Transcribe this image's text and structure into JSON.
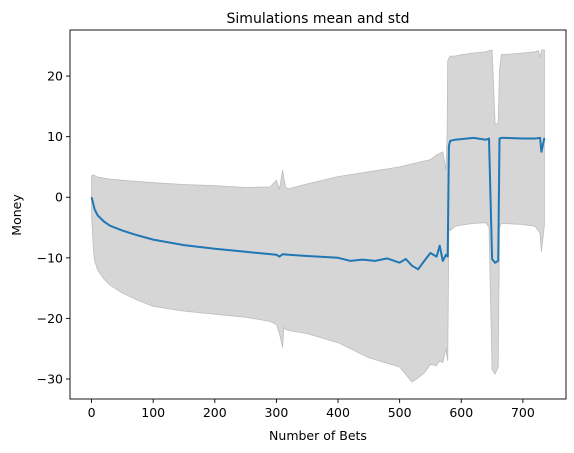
{
  "chart_data": {
    "type": "area",
    "title": "Simulations mean and std",
    "xlabel": "Number of Bets",
    "ylabel": "Money",
    "xlim": [
      -35,
      770
    ],
    "ylim": [
      -33.3,
      27.6
    ],
    "xticks": [
      0,
      100,
      200,
      300,
      400,
      500,
      600,
      700
    ],
    "yticks": [
      -30,
      -20,
      -10,
      0,
      10,
      20
    ],
    "grid": false,
    "colors": {
      "mean": "#1f77b4",
      "band": "#d6d6d6",
      "band_edge": "#bdbdbd"
    },
    "series": [
      {
        "name": "mean",
        "kind": "line",
        "x": [
          0,
          5,
          10,
          20,
          30,
          50,
          75,
          100,
          150,
          200,
          250,
          300,
          305,
          310,
          320,
          350,
          400,
          420,
          440,
          460,
          480,
          500,
          510,
          520,
          530,
          540,
          550,
          560,
          565,
          570,
          575,
          578,
          580,
          582,
          590,
          600,
          620,
          640,
          645,
          650,
          655,
          660,
          662,
          665,
          670,
          700,
          720,
          728,
          730,
          735
        ],
        "y": [
          0,
          -2,
          -3,
          -4,
          -4.7,
          -5.5,
          -6.3,
          -7,
          -7.9,
          -8.5,
          -9,
          -9.5,
          -9.8,
          -9.4,
          -9.5,
          -9.7,
          -10,
          -10.5,
          -10.3,
          -10.5,
          -10.1,
          -10.8,
          -10.2,
          -11.3,
          -11.9,
          -10.5,
          -9.2,
          -9.8,
          -8,
          -10.5,
          -9.5,
          -9.8,
          8.5,
          9.3,
          9.5,
          9.6,
          9.8,
          9.5,
          9.7,
          -10.2,
          -10.8,
          -10.5,
          9.7,
          9.8,
          9.8,
          9.7,
          9.7,
          9.8,
          7.5,
          9.8
        ]
      },
      {
        "name": "mean + std",
        "kind": "band-upper",
        "x": [
          0,
          3,
          10,
          30,
          50,
          100,
          150,
          200,
          250,
          290,
          300,
          305,
          310,
          312,
          315,
          320,
          350,
          400,
          450,
          500,
          520,
          550,
          560,
          570,
          575,
          577,
          578,
          580,
          582,
          590,
          600,
          620,
          640,
          645,
          650,
          655,
          660,
          662,
          665,
          700,
          720,
          725,
          728,
          730,
          735
        ],
        "y": [
          3.5,
          3.7,
          3.3,
          3,
          2.8,
          2.4,
          2.1,
          1.9,
          1.6,
          1.7,
          2.8,
          1.3,
          4.5,
          3.2,
          1.6,
          1.4,
          2.2,
          3.4,
          4.2,
          5,
          5.5,
          6.2,
          7,
          7.5,
          4.5,
          10,
          22.5,
          23,
          23.3,
          23.3,
          23.5,
          23.8,
          24,
          24.2,
          24.3,
          12,
          12.2,
          21,
          23.5,
          23.8,
          24,
          24.2,
          23,
          24.3,
          24.3
        ]
      },
      {
        "name": "mean - std",
        "kind": "band-lower",
        "x": [
          0,
          3,
          5,
          10,
          20,
          30,
          50,
          75,
          100,
          150,
          200,
          250,
          290,
          300,
          305,
          310,
          312,
          315,
          320,
          350,
          400,
          450,
          500,
          520,
          530,
          540,
          550,
          560,
          565,
          570,
          575,
          578,
          580,
          582,
          590,
          600,
          620,
          640,
          645,
          650,
          655,
          660,
          662,
          665,
          700,
          720,
          725,
          728,
          730,
          735
        ],
        "y": [
          -3,
          -8.5,
          -10.5,
          -12,
          -13.5,
          -14.5,
          -15.8,
          -17,
          -18,
          -18.8,
          -19.3,
          -19.8,
          -20.5,
          -21,
          -22.5,
          -24.8,
          -21.5,
          -21.8,
          -22,
          -22.5,
          -24,
          -26.5,
          -28,
          -30.5,
          -29.8,
          -29,
          -27.6,
          -27.8,
          -27,
          -27.3,
          -25,
          -27,
          -5,
          -5.5,
          -4.8,
          -4.6,
          -4.3,
          -4.2,
          -5,
          -28.5,
          -29.2,
          -28,
          -5,
          -4.3,
          -4.5,
          -4.8,
          -5.5,
          -6,
          -9,
          -4.5
        ]
      }
    ]
  }
}
